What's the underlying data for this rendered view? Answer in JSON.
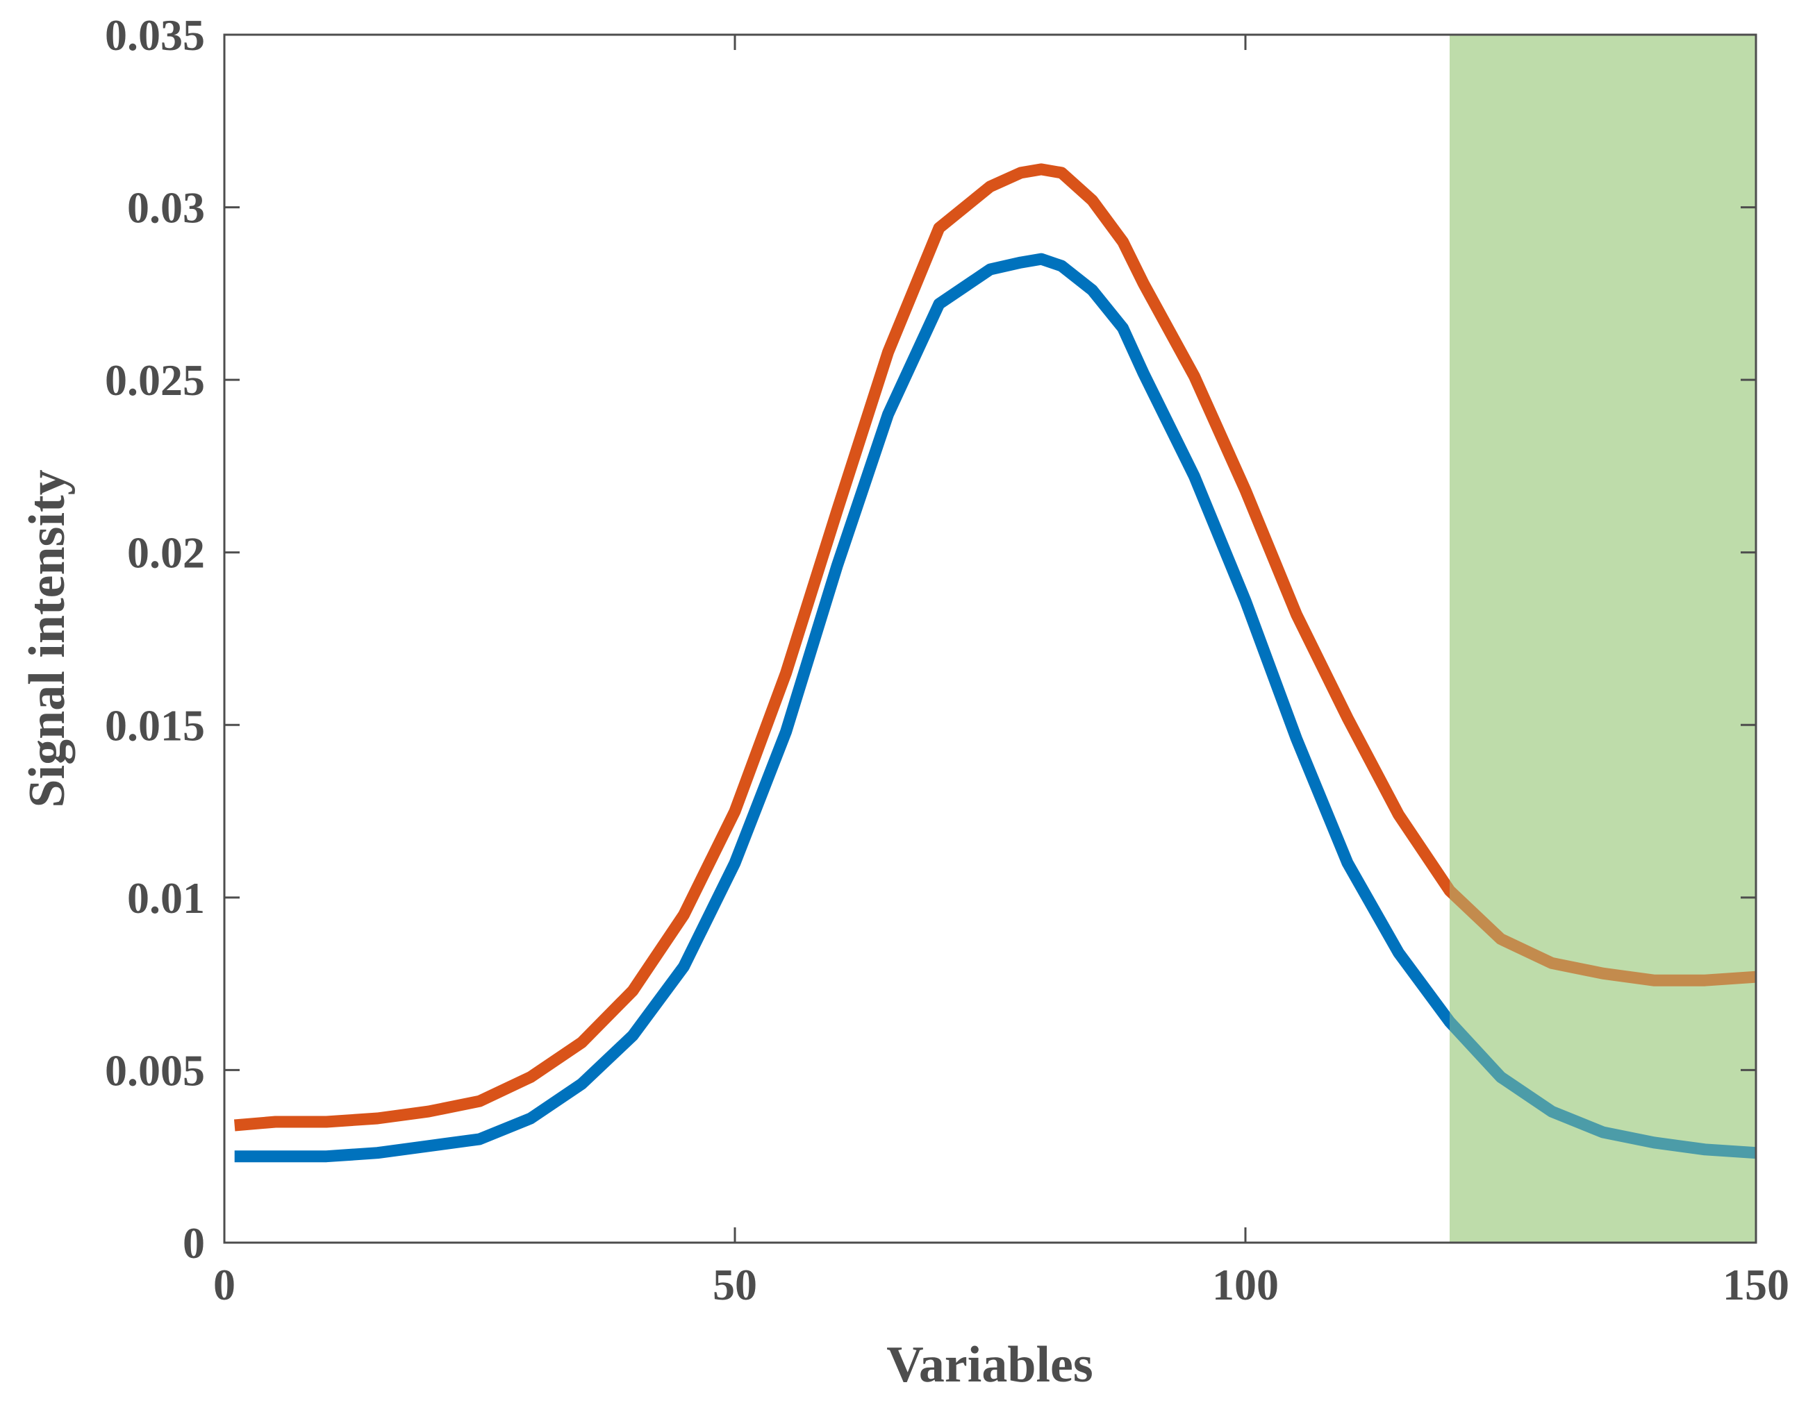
{
  "chart_data": {
    "type": "line",
    "title": "",
    "xlabel": "Variables",
    "ylabel": "Signal intensity",
    "xlim": [
      0,
      150
    ],
    "ylim": [
      0,
      0.035
    ],
    "xticks": [
      0,
      50,
      100,
      150
    ],
    "xtick_labels": [
      "0",
      "50",
      "100",
      "150"
    ],
    "yticks": [
      0,
      0.005,
      0.01,
      0.015,
      0.02,
      0.025,
      0.03,
      0.035
    ],
    "ytick_labels": [
      "0",
      "0.005",
      "0.01",
      "0.015",
      "0.02",
      "0.025",
      "0.03",
      "0.035"
    ],
    "grid": false,
    "highlight_region": {
      "x_start": 120,
      "x_end": 150,
      "color": "#a9d18e"
    },
    "series": [
      {
        "name": "orange series",
        "color": "#d95319",
        "x": [
          1,
          5,
          10,
          15,
          20,
          25,
          30,
          35,
          40,
          45,
          50,
          55,
          60,
          65,
          70,
          75,
          78,
          80,
          82,
          85,
          88,
          90,
          95,
          100,
          105,
          110,
          115,
          120,
          125,
          130,
          135,
          140,
          145,
          150
        ],
        "values": [
          0.0034,
          0.0035,
          0.0035,
          0.0036,
          0.0038,
          0.0041,
          0.0048,
          0.0058,
          0.0073,
          0.0095,
          0.0125,
          0.0165,
          0.0212,
          0.0258,
          0.0294,
          0.0306,
          0.031,
          0.0311,
          0.031,
          0.0302,
          0.029,
          0.0278,
          0.0251,
          0.0218,
          0.0182,
          0.0152,
          0.0124,
          0.0102,
          0.0088,
          0.0081,
          0.0078,
          0.0076,
          0.0076,
          0.0077
        ]
      },
      {
        "name": "blue series",
        "color": "#0072bd",
        "x": [
          1,
          5,
          10,
          15,
          20,
          25,
          30,
          35,
          40,
          45,
          50,
          55,
          60,
          65,
          70,
          75,
          78,
          80,
          82,
          85,
          88,
          90,
          95,
          100,
          105,
          110,
          115,
          120,
          125,
          130,
          135,
          140,
          145,
          150
        ],
        "values": [
          0.0025,
          0.0025,
          0.0025,
          0.0026,
          0.0028,
          0.003,
          0.0036,
          0.0046,
          0.006,
          0.008,
          0.011,
          0.0148,
          0.0196,
          0.024,
          0.0272,
          0.0282,
          0.0284,
          0.0285,
          0.0283,
          0.0276,
          0.0265,
          0.0252,
          0.0222,
          0.0186,
          0.0146,
          0.011,
          0.0084,
          0.0064,
          0.0048,
          0.0038,
          0.0032,
          0.0029,
          0.0027,
          0.0026
        ]
      }
    ]
  }
}
